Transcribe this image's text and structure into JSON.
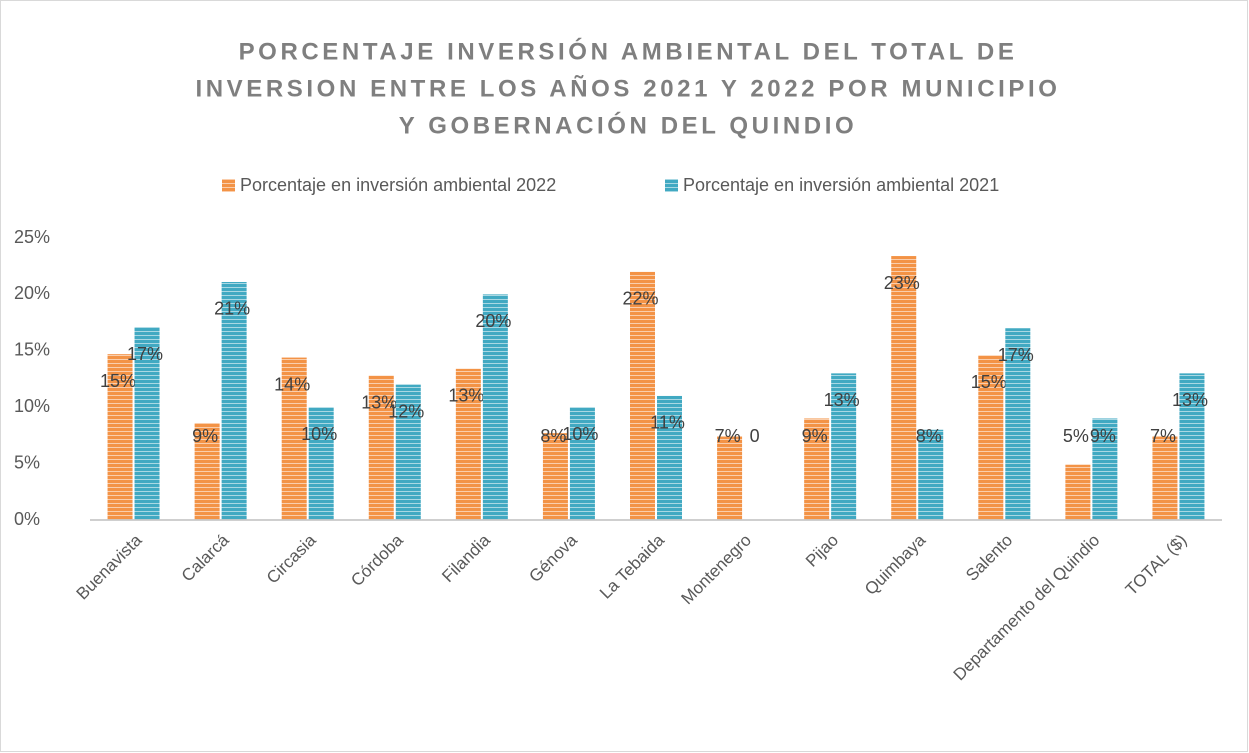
{
  "chart_data": {
    "type": "bar",
    "title": [
      "PORCENTAJE INVERSIÓN AMBIENTAL DEL TOTAL DE",
      "INVERSION ENTRE LOS AÑOS 2021 Y 2022 POR MUNICIPIO",
      "Y GOBERNACIÓN DEL QUINDIO"
    ],
    "categories": [
      "Buenavista",
      "Calarcá",
      "Circasia",
      "Córdoba",
      "Filandia",
      "Génova",
      "La Tebaida",
      "Montenegro",
      "Pijao",
      "Quimbaya",
      "Salento",
      "Departamento del Quindio",
      "TOTAL ($)"
    ],
    "series": [
      {
        "name": "Porcentaje en inversión ambiental 2022",
        "color": "#f39346",
        "values": [
          14.7,
          8.6,
          14.4,
          12.8,
          13.4,
          7.7,
          22.0,
          7.4,
          9.0,
          23.4,
          14.6,
          4.9,
          7.4
        ],
        "value_labels": [
          "15%",
          "9%",
          "14%",
          "13%",
          "13%",
          "8%",
          "22%",
          "7%",
          "9%",
          "23%",
          "15%",
          "5%",
          "7%"
        ]
      },
      {
        "name": "Porcentaje en inversión ambiental 2021",
        "color": "#41a9c2",
        "values": [
          17.1,
          21.1,
          10.0,
          12.0,
          20.0,
          10.0,
          11.0,
          0,
          13.0,
          8.0,
          17.0,
          9.0,
          13.0
        ],
        "value_labels": [
          "17%",
          "21%",
          "10%",
          "12%",
          "20%",
          "10%",
          "11%",
          "0",
          "13%",
          "8%",
          "17%",
          "9%",
          "13%"
        ]
      }
    ],
    "ylim": [
      0,
      25
    ],
    "yticks": [
      {
        "value": 0,
        "label": "0%"
      },
      {
        "value": 5,
        "label": "5%"
      },
      {
        "value": 10,
        "label": "10%"
      },
      {
        "value": 15,
        "label": "15%"
      },
      {
        "value": 20,
        "label": "20%"
      },
      {
        "value": 25,
        "label": "25%"
      }
    ],
    "grid": false,
    "legend": "top"
  }
}
